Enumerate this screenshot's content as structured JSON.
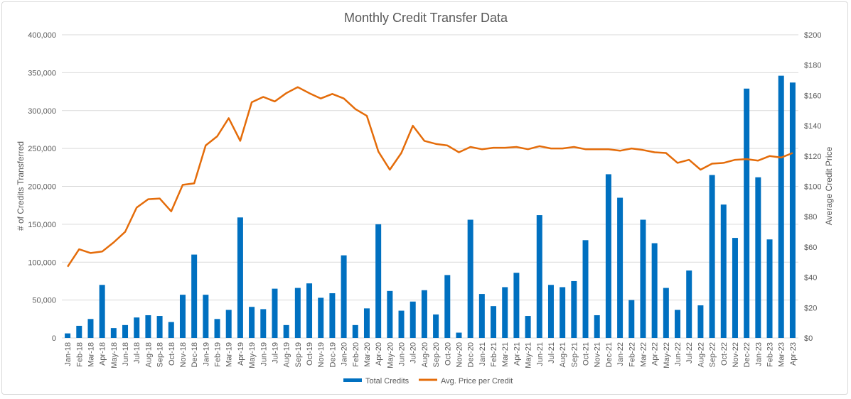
{
  "chart_data": {
    "type": "bar+line",
    "title": "Monthly Credit Transfer Data",
    "ylabel": "# of Credits Transferred",
    "y2label": "Average Credit Price",
    "ylim": [
      0,
      400000
    ],
    "y2lim": [
      0,
      200
    ],
    "yticks": [
      "0",
      "50,000",
      "100,000",
      "150,000",
      "200,000",
      "250,000",
      "300,000",
      "350,000",
      "400,000"
    ],
    "y2ticks": [
      "$0",
      "$20",
      "$40",
      "$60",
      "$80",
      "$100",
      "$120",
      "$140",
      "$160",
      "$180",
      "$200"
    ],
    "grid": true,
    "legend_position": "bottom",
    "categories": [
      "Jan-18",
      "Feb-18",
      "Mar-18",
      "Apr-18",
      "May-18",
      "Jun-18",
      "Jul-18",
      "Aug-18",
      "Sep-18",
      "Oct-18",
      "Nov-18",
      "Dec-18",
      "Jan-19",
      "Feb-19",
      "Mar-19",
      "Apr-19",
      "May-19",
      "Jun-19",
      "Jul-19",
      "Aug-19",
      "Sep-19",
      "Oct-19",
      "Nov-19",
      "Dec-19",
      "Jan-20",
      "Feb-20",
      "Mar-20",
      "Apr-20",
      "May-20",
      "Jun-20",
      "Jul-20",
      "Aug-20",
      "Sep-20",
      "Oct-20",
      "Nov-20",
      "Dec-20",
      "Jan-21",
      "Feb-21",
      "Mar-21",
      "Apr-21",
      "May-21",
      "Jun-21",
      "Jul-21",
      "Aug-21",
      "Sep-21",
      "Oct-21",
      "Nov-21",
      "Dec-21",
      "Jan-22",
      "Feb-22",
      "Mar-22",
      "Apr-22",
      "May-22",
      "Jun-22",
      "Jul-22",
      "Aug-22",
      "Sep-22",
      "Oct-22",
      "Nov-22",
      "Dec-22",
      "Jan-23",
      "Feb-23",
      "Mar-23",
      "Apr-23"
    ],
    "series": [
      {
        "name": "Total Credits",
        "type": "bar",
        "axis": "left",
        "color": "#0070C0",
        "values": [
          6000,
          16000,
          25000,
          70000,
          13000,
          17000,
          27000,
          30000,
          29000,
          21000,
          57000,
          110000,
          57000,
          25000,
          37000,
          159000,
          41000,
          38000,
          65000,
          17000,
          66000,
          72000,
          53000,
          59000,
          109000,
          17000,
          39000,
          150000,
          62000,
          36000,
          48000,
          63000,
          31000,
          83000,
          7000,
          156000,
          58000,
          42000,
          67000,
          86000,
          29000,
          162000,
          70000,
          67000,
          75000,
          129000,
          30000,
          216000,
          185000,
          50000,
          156000,
          125000,
          66000,
          37000,
          89000,
          43000,
          215000,
          176000,
          132000,
          329000,
          212000,
          130000,
          346000,
          337000
        ]
      },
      {
        "name": "Avg. Price per Credit",
        "type": "line",
        "axis": "right",
        "color": "#E46C0A",
        "values": [
          47,
          58.5,
          56,
          57,
          63,
          70,
          86,
          91.5,
          92,
          83.5,
          101,
          102,
          127,
          133,
          145,
          130,
          155.5,
          159,
          156,
          161.5,
          165.5,
          161.5,
          158,
          161,
          158,
          151,
          146.5,
          123,
          111,
          122,
          140,
          130,
          128,
          127,
          122.5,
          126,
          124.5,
          125.5,
          125.5,
          126,
          124.5,
          126.5,
          125,
          125,
          126,
          124.5,
          124.5,
          124.5,
          123.5,
          125,
          124,
          122.5,
          122,
          115.5,
          117.5,
          111,
          115,
          115.5,
          117.5,
          118,
          117,
          120,
          119,
          122
        ]
      }
    ]
  }
}
